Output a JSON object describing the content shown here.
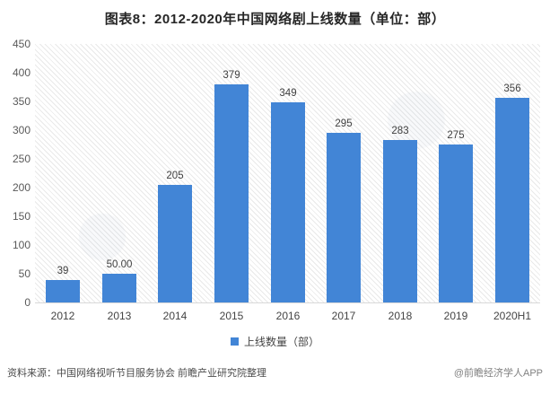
{
  "title": "图表8：2012-2020年中国网络剧上线数量（单位：部）",
  "legend": {
    "label": "上线数量（部）",
    "swatch_color": "#4285d6"
  },
  "footer": {
    "source": "资料来源：中国网络视听节目服务协会 前瞻产业研究院整理",
    "credit": "@前瞻经济学人APP"
  },
  "colors": {
    "bar": "#4285d6",
    "axis_text": "#595959",
    "value_label_text": "#3f3f3f",
    "title_text": "#262626"
  },
  "chart_data": {
    "type": "bar",
    "title": "图表8：2012-2020年中国网络剧上线数量（单位：部）",
    "series_name": "上线数量（部）",
    "categories": [
      "2012",
      "2013",
      "2014",
      "2015",
      "2016",
      "2017",
      "2018",
      "2019",
      "2020H1"
    ],
    "values": [
      39,
      50,
      205,
      379,
      349,
      295,
      283,
      275,
      356
    ],
    "value_labels": [
      "39",
      "50.00",
      "205",
      "379",
      "349",
      "295",
      "283",
      "275",
      "356"
    ],
    "xlabel": "",
    "ylabel": "",
    "ylim": [
      0,
      450
    ],
    "yticks": [
      0,
      50,
      100,
      150,
      200,
      250,
      300,
      350,
      400,
      450
    ],
    "grid": false,
    "legend_position": "bottom",
    "bar_color": "#4285d6"
  }
}
